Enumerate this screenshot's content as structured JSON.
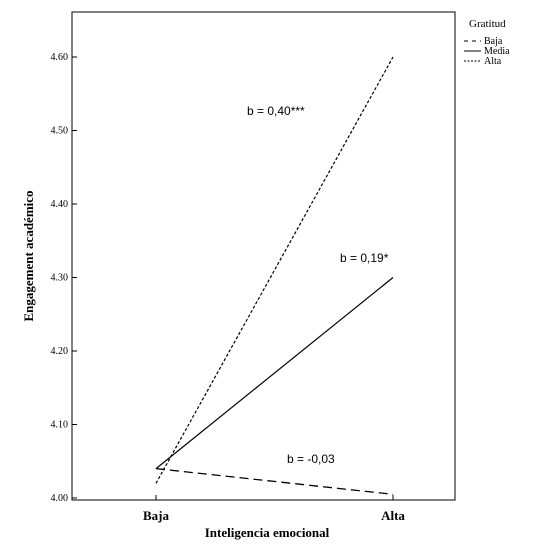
{
  "chart_data": {
    "type": "line",
    "xlabel": "Inteligencia emocional",
    "ylabel": "Engagement académico",
    "categories": [
      "Baja",
      "Alta"
    ],
    "ylim": [
      4.0,
      4.6
    ],
    "yticks": [
      "4.00",
      "4.10",
      "4.20",
      "4.30",
      "4.40",
      "4.50",
      "4.60"
    ],
    "legend_title": "Gratitud",
    "legend_position": "right",
    "series": [
      {
        "name": "Baja",
        "style": "dashed",
        "values": [
          4.04,
          4.005
        ]
      },
      {
        "name": "Media",
        "style": "solid",
        "values": [
          4.04,
          4.3
        ]
      },
      {
        "name": "Alta",
        "style": "dotted",
        "values": [
          4.02,
          4.6
        ]
      }
    ],
    "annotations": [
      {
        "text": "b = 0,40***",
        "series": "Alta"
      },
      {
        "text": "b = 0,19*",
        "series": "Media"
      },
      {
        "text": "b = -0,03",
        "series": "Baja"
      }
    ]
  }
}
